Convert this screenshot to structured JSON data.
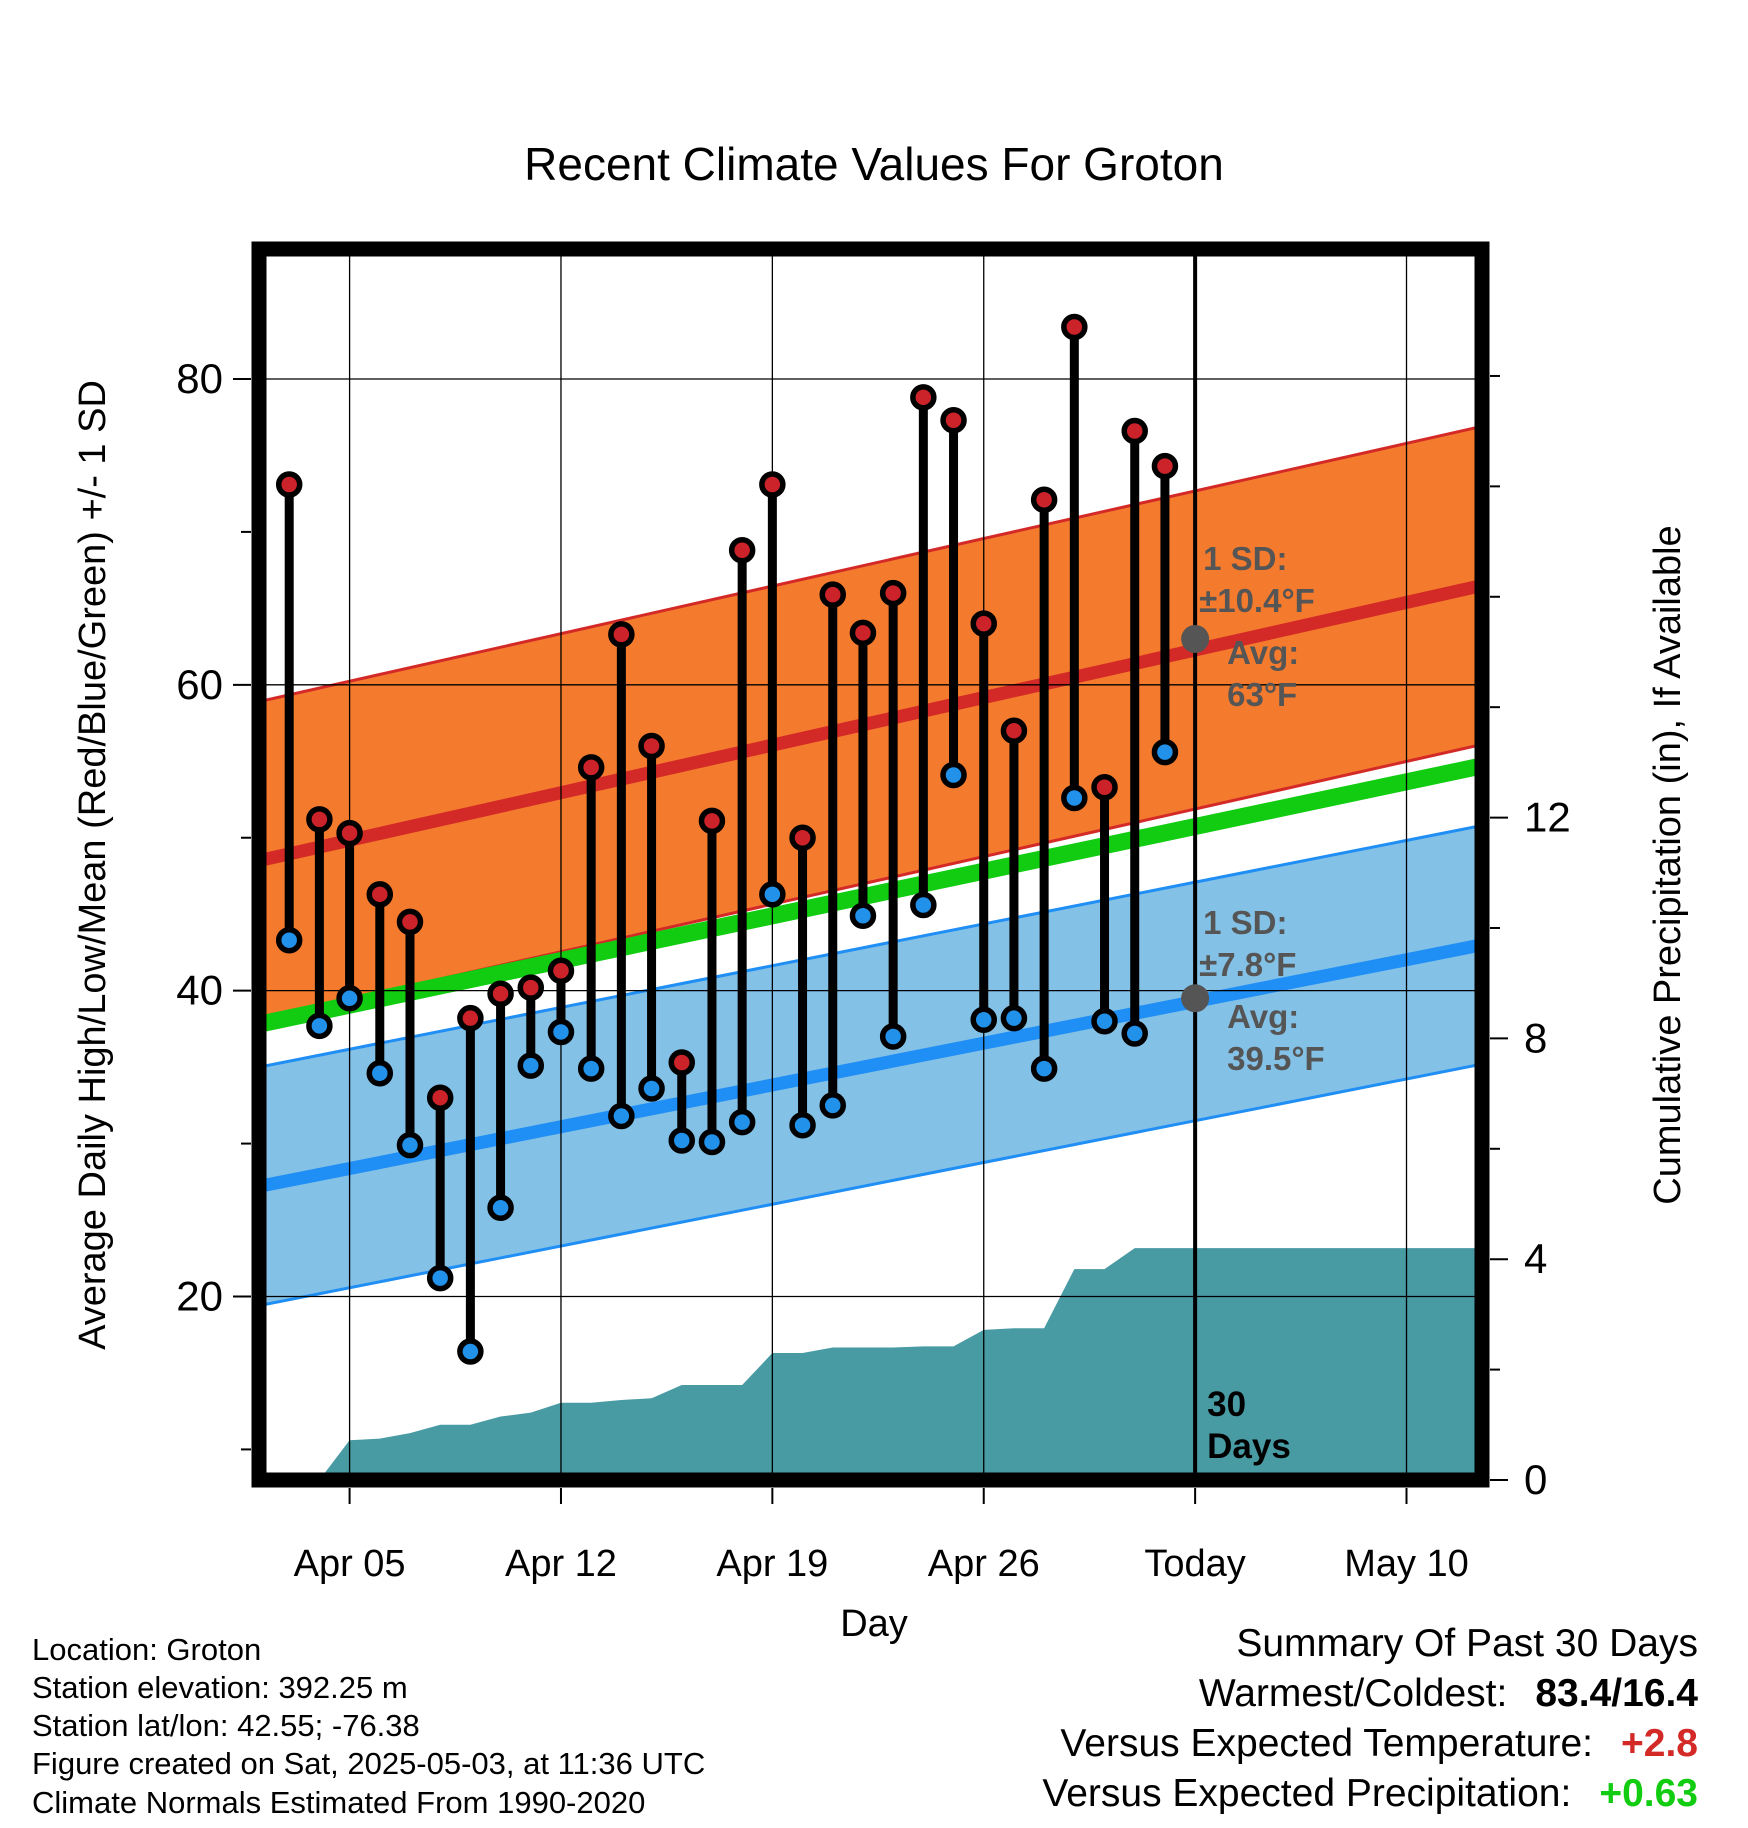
{
  "chart_data": {
    "type": "range-bar",
    "title": "Recent Climate Values For Groton",
    "xlabel": "Day",
    "ylabel_left": "Average Daily High/Low/Mean (Red/Blue/Green) +/- 1 SD",
    "ylabel_right": "Cumulative Precipitation (in), If Available",
    "x_tick_labels": [
      "Apr 05",
      "Apr 12",
      "Apr 19",
      "Apr 26",
      "Today",
      "May 10"
    ],
    "x_tick_days": [
      3,
      10,
      17,
      24,
      31,
      38
    ],
    "x_range_days": [
      0,
      40.5
    ],
    "y_left_ticks": [
      "20",
      "40",
      "60",
      "80"
    ],
    "y_left_tick_values": [
      20,
      40,
      60,
      80
    ],
    "y_left_range": [
      8,
      88.5
    ],
    "y_right_ticks": [
      "0",
      "4",
      "8",
      "12"
    ],
    "y_right_tick_values": [
      0,
      4,
      8,
      12
    ],
    "y_right_range": [
      0,
      22.3
    ],
    "grid": true,
    "today_marker": {
      "label_line1": "30",
      "label_line2": "Days",
      "day": 31
    },
    "normals": {
      "days": [
        0,
        40.5
      ],
      "high_mean": [
        48.5,
        66.5
      ],
      "high_sd": [
        10.4,
        10.4
      ],
      "low_mean": [
        27.2,
        43.0
      ],
      "low_sd": [
        7.8,
        7.8
      ],
      "mean": [
        37.8,
        54.7
      ]
    },
    "high_annotation": {
      "sd_label": "1 SD:",
      "sd_value": "±10.4°F",
      "avg_label": "Avg:",
      "avg_value": "63°F",
      "avg": 63.0
    },
    "low_annotation": {
      "sd_label": "1 SD:",
      "sd_value": "±7.8°F",
      "avg_label": "Avg:",
      "avg_value": "39.5°F",
      "avg": 39.5
    },
    "daily": {
      "days": [
        1,
        2,
        3,
        4,
        5,
        6,
        7,
        8,
        9,
        10,
        11,
        12,
        13,
        14,
        15,
        16,
        17,
        18,
        19,
        20,
        21,
        22,
        23,
        24,
        25,
        26,
        27,
        28,
        29,
        30
      ],
      "high": [
        73.1,
        51.2,
        50.3,
        46.3,
        44.5,
        33.0,
        38.2,
        39.8,
        40.2,
        41.3,
        54.6,
        63.3,
        56.0,
        35.3,
        51.1,
        68.8,
        73.1,
        50.0,
        65.9,
        63.4,
        66.0,
        78.8,
        77.3,
        64.0,
        57.0,
        72.1,
        83.4,
        53.3,
        76.6,
        74.3
      ],
      "low": [
        43.3,
        37.7,
        39.5,
        34.6,
        29.9,
        21.2,
        16.4,
        25.8,
        35.1,
        37.3,
        34.9,
        31.8,
        33.6,
        30.2,
        30.1,
        31.4,
        46.3,
        31.2,
        32.5,
        44.9,
        37.0,
        45.6,
        54.1,
        38.1,
        38.2,
        34.9,
        52.6,
        38.0,
        37.2,
        55.6
      ]
    },
    "precip": {
      "days": [
        1,
        2,
        3,
        4,
        5,
        6,
        7,
        8,
        9,
        10,
        11,
        12,
        13,
        14,
        15,
        16,
        17,
        18,
        19,
        20,
        21,
        22,
        23,
        24,
        25,
        26,
        27,
        28,
        29,
        30,
        31,
        40.5
      ],
      "cumulative": [
        0.0,
        0.0,
        0.72,
        0.75,
        0.85,
        1.0,
        1.0,
        1.15,
        1.22,
        1.4,
        1.4,
        1.45,
        1.48,
        1.72,
        1.72,
        1.72,
        2.3,
        2.3,
        2.4,
        2.4,
        2.4,
        2.42,
        2.42,
        2.72,
        2.75,
        2.75,
        3.82,
        3.82,
        4.2,
        4.2,
        4.2,
        4.2
      ]
    },
    "colors": {
      "high_band": "#f47b2e",
      "high_line": "#d42a27",
      "low_band": "#84c1e6",
      "low_line": "#1f8ef5",
      "mean_line": "#11cc11",
      "precip": "#489aa3",
      "high_point": "#cc2229",
      "low_point": "#2191ea",
      "annotation": "#555555"
    }
  },
  "info": {
    "location": "Location: Groton",
    "elevation": "Station elevation: 392.25 m",
    "latlon": "Station lat/lon: 42.55; -76.38",
    "created": "Figure created on Sat, 2025-05-03, at 11:36 UTC",
    "normals": "Climate Normals Estimated From 1990-2020"
  },
  "summary": {
    "title": "Summary Of Past 30 Days",
    "warm_cold_label": "Warmest/Coldest:",
    "warm_cold_value": "83.4/16.4",
    "temp_label": "Versus Expected Temperature:",
    "temp_value": "+2.8",
    "temp_color": "#d42a27",
    "precip_label": "Versus Expected Precipitation:",
    "precip_value": "+0.63",
    "precip_color": "#11cc11"
  }
}
